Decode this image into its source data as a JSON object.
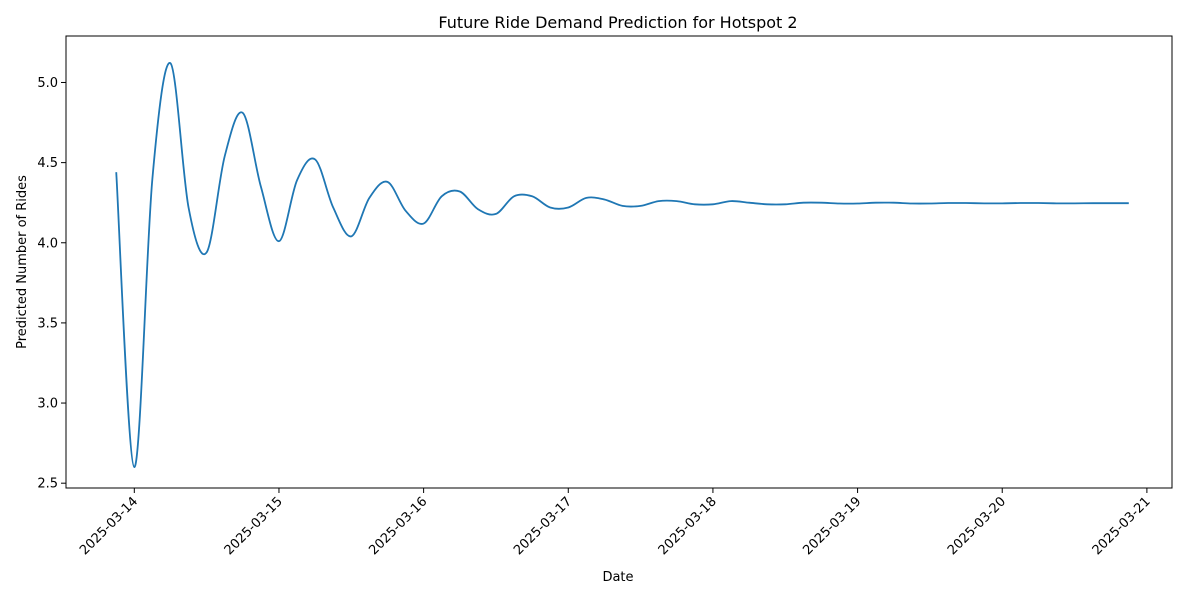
{
  "chart_data": {
    "type": "line",
    "title": "Future Ride Demand Prediction for Hotspot 2",
    "xlabel": "Date",
    "ylabel": "Predicted Number of Rides",
    "xlim": [
      "2025-03-13 12:40",
      "2025-03-21 04:10"
    ],
    "ylim": [
      2.47,
      5.29
    ],
    "x_ticks": [
      "2025-03-14",
      "2025-03-15",
      "2025-03-16",
      "2025-03-17",
      "2025-03-18",
      "2025-03-19",
      "2025-03-20",
      "2025-03-21"
    ],
    "y_ticks": [
      2.5,
      3.0,
      3.5,
      4.0,
      4.5,
      5.0
    ],
    "y_tick_labels": [
      "2.5",
      "3.0",
      "3.5",
      "4.0",
      "4.5",
      "5.0"
    ],
    "grid": false,
    "legend": "none",
    "colors": {
      "line": "#1f77b4"
    },
    "series": [
      {
        "x": [
          "2025-03-13 21:00",
          "2025-03-14 00:00",
          "2025-03-14 03:00",
          "2025-03-14 06:00",
          "2025-03-14 09:00",
          "2025-03-14 12:00",
          "2025-03-14 15:00",
          "2025-03-14 18:00",
          "2025-03-14 21:00",
          "2025-03-15 00:00",
          "2025-03-15 03:00",
          "2025-03-15 06:00",
          "2025-03-15 09:00",
          "2025-03-15 12:00",
          "2025-03-15 15:00",
          "2025-03-15 18:00",
          "2025-03-15 21:00",
          "2025-03-16 00:00",
          "2025-03-16 03:00",
          "2025-03-16 06:00",
          "2025-03-16 09:00",
          "2025-03-16 12:00",
          "2025-03-16 15:00",
          "2025-03-16 18:00",
          "2025-03-16 21:00",
          "2025-03-17 00:00",
          "2025-03-17 03:00",
          "2025-03-17 06:00",
          "2025-03-17 09:00",
          "2025-03-17 12:00",
          "2025-03-17 15:00",
          "2025-03-17 18:00",
          "2025-03-17 21:00",
          "2025-03-18 00:00",
          "2025-03-18 03:00",
          "2025-03-18 06:00",
          "2025-03-18 09:00",
          "2025-03-18 12:00",
          "2025-03-18 15:00",
          "2025-03-18 18:00",
          "2025-03-18 21:00",
          "2025-03-19 00:00",
          "2025-03-19 03:00",
          "2025-03-19 06:00",
          "2025-03-19 09:00",
          "2025-03-19 12:00",
          "2025-03-19 15:00",
          "2025-03-19 18:00",
          "2025-03-19 21:00",
          "2025-03-20 00:00",
          "2025-03-20 03:00",
          "2025-03-20 06:00",
          "2025-03-20 09:00",
          "2025-03-20 12:00",
          "2025-03-20 15:00",
          "2025-03-20 18:00",
          "2025-03-20 21:00"
        ],
        "values": [
          4.44,
          2.6,
          4.4,
          5.12,
          4.22,
          3.94,
          4.54,
          4.81,
          4.35,
          4.01,
          4.39,
          4.52,
          4.22,
          4.04,
          4.28,
          4.38,
          4.2,
          4.12,
          4.29,
          4.32,
          4.21,
          4.18,
          4.29,
          4.29,
          4.22,
          4.22,
          4.28,
          4.27,
          4.23,
          4.23,
          4.26,
          4.26,
          4.24,
          4.24,
          4.26,
          4.25,
          4.24,
          4.24,
          4.25,
          4.25,
          4.245,
          4.245,
          4.25,
          4.25,
          4.245,
          4.245,
          4.248,
          4.248,
          4.246,
          4.246,
          4.248,
          4.248,
          4.246,
          4.246,
          4.247,
          4.247,
          4.247
        ]
      }
    ]
  }
}
